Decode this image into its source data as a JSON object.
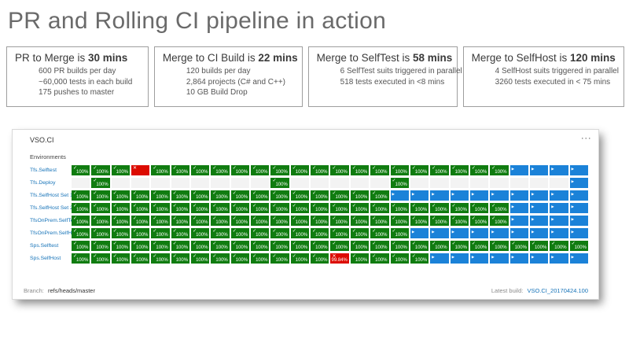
{
  "page_title": "PR and Rolling CI pipeline in action",
  "stat_boxes": [
    {
      "title_prefix": "PR to Merge is ",
      "title_bold": "30 mins",
      "lines": [
        "600 PR builds per day",
        "~60,000 tests in each build",
        "175 pushes to master"
      ]
    },
    {
      "title_prefix": "Merge to CI Build is ",
      "title_bold": "22 mins",
      "lines": [
        "120 builds per day",
        "2,864 projects (C# and C++)",
        "10 GB Build Drop"
      ]
    },
    {
      "title_prefix": "Merge to SelfTest is ",
      "title_bold": "58 mins",
      "lines": [
        "6 SelfTest suits triggered in parallel",
        "518 tests executed in <8 mins"
      ]
    },
    {
      "title_prefix": "Merge to SelfHost is ",
      "title_bold": "120 mins",
      "lines": [
        "4 SelfHost suits triggered in parallel",
        "3260 tests executed in < 75 mins"
      ]
    }
  ],
  "dashboard": {
    "title": "VSO.CI",
    "menu_icon": "···",
    "environments_label": "Environments",
    "columns": 26,
    "success_percent": "100%",
    "failed_percent": "99.84%",
    "cell_glyphs": {
      "g": "✓",
      "r": "✕",
      "rx": "✕",
      "b": "▶"
    },
    "colors": {
      "success": "#107c10",
      "failed": "#dc0b00",
      "in_progress": "#1b82d8",
      "empty": "#f3f3f3",
      "link": "#1673b8"
    },
    "rows": [
      {
        "label": "Tfs.Selftest",
        "cells": [
          "g",
          "g",
          "g",
          "r",
          "g",
          "g",
          "g",
          "g",
          "g",
          "g",
          "g",
          "g",
          "g",
          "g",
          "g",
          "g",
          "g",
          "g",
          "g",
          "g",
          "g",
          "g",
          "b",
          "b",
          "b",
          "b"
        ]
      },
      {
        "label": "Tfs.Deploy",
        "cells": [
          "e",
          "g",
          "e",
          "e",
          "e",
          "e",
          "e",
          "e",
          "e",
          "e",
          "g",
          "e",
          "e",
          "e",
          "e",
          "e",
          "g",
          "e",
          "e",
          "e",
          "e",
          "e",
          "e",
          "e",
          "e",
          "b"
        ]
      },
      {
        "label": "Tfs.SelfHost Set 1",
        "cells": [
          "g",
          "g",
          "g",
          "g",
          "g",
          "g",
          "g",
          "g",
          "g",
          "g",
          "g",
          "g",
          "g",
          "g",
          "g",
          "g",
          "b",
          "b",
          "b",
          "b",
          "b",
          "b",
          "b",
          "b",
          "b",
          "b"
        ]
      },
      {
        "label": "Tfs.SelfHost Set 2",
        "cells": [
          "g",
          "g",
          "g",
          "g",
          "g",
          "g",
          "g",
          "g",
          "g",
          "g",
          "g",
          "g",
          "g",
          "g",
          "g",
          "g",
          "g",
          "g",
          "g",
          "g",
          "g",
          "g",
          "b",
          "b",
          "b",
          "b"
        ]
      },
      {
        "label": "TfsOnPrem.SelfTest",
        "cells": [
          "g",
          "g",
          "g",
          "g",
          "g",
          "g",
          "g",
          "g",
          "g",
          "g",
          "g",
          "g",
          "g",
          "g",
          "g",
          "g",
          "g",
          "g",
          "g",
          "g",
          "g",
          "g",
          "b",
          "b",
          "b",
          "b"
        ]
      },
      {
        "label": "TfsOnPrem.SelfHost",
        "cells": [
          "g",
          "g",
          "g",
          "g",
          "g",
          "g",
          "g",
          "g",
          "g",
          "g",
          "g",
          "g",
          "g",
          "g",
          "g",
          "g",
          "g",
          "b",
          "b",
          "b",
          "b",
          "b",
          "b",
          "b",
          "b",
          "b"
        ]
      },
      {
        "label": "Sps.Selftest",
        "cells": [
          "g",
          "g",
          "g",
          "g",
          "g",
          "g",
          "g",
          "g",
          "g",
          "g",
          "g",
          "g",
          "g",
          "g",
          "g",
          "g",
          "g",
          "g",
          "g",
          "g",
          "g",
          "g",
          "g",
          "g",
          "g",
          "g"
        ]
      },
      {
        "label": "Sps.SelfHost",
        "cells": [
          "g",
          "g",
          "g",
          "g",
          "g",
          "g",
          "g",
          "g",
          "g",
          "g",
          "g",
          "g",
          "g",
          "rx",
          "g",
          "g",
          "g",
          "g",
          "b",
          "b",
          "b",
          "b",
          "b",
          "b",
          "b",
          "b"
        ]
      }
    ],
    "footer": {
      "branch_label": "Branch:",
      "branch_value": "refs/heads/master",
      "latest_build_label": "Latest build:",
      "latest_build_value": "VSO.CI_20170424.100"
    }
  }
}
